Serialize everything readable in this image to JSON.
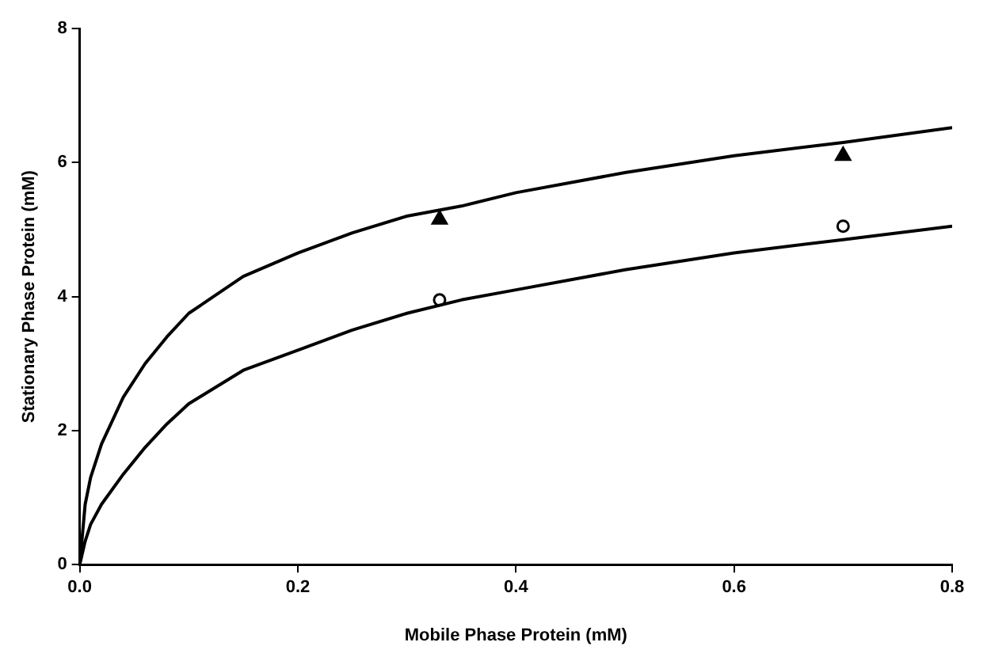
{
  "chart_data": {
    "type": "line",
    "xlabel": "Mobile Phase Protein (mM)",
    "ylabel": "Stationary Phase Protein (mM)",
    "xlim": [
      0,
      0.8
    ],
    "xticks": [
      {
        "value": 0,
        "label": "0.0"
      },
      0.2,
      0.4,
      0.6,
      0.8
    ],
    "ylim": [
      0,
      8
    ],
    "yticks": [
      0,
      2,
      4,
      6,
      8
    ],
    "grid": false,
    "legend": false,
    "series": [
      {
        "color": "#000000",
        "marker": "none",
        "line_style": "solid",
        "x": [
          0,
          0.005,
          0.01,
          0.02,
          0.04,
          0.06,
          0.08,
          0.1,
          0.15,
          0.2,
          0.25,
          0.3,
          0.35,
          0.4,
          0.5,
          0.6,
          0.7,
          0.8
        ],
        "values": [
          0,
          0.9,
          1.3,
          1.8,
          2.5,
          3.0,
          3.4,
          3.75,
          4.3,
          4.65,
          4.95,
          5.2,
          5.35,
          5.55,
          5.85,
          6.1,
          6.3,
          6.52
        ]
      },
      {
        "color": "#000000",
        "marker": "none",
        "line_style": "solid",
        "x": [
          0,
          0.005,
          0.01,
          0.02,
          0.04,
          0.06,
          0.08,
          0.1,
          0.15,
          0.2,
          0.25,
          0.3,
          0.35,
          0.4,
          0.5,
          0.6,
          0.7,
          0.8
        ],
        "values": [
          0,
          0.35,
          0.6,
          0.9,
          1.35,
          1.75,
          2.1,
          2.4,
          2.9,
          3.2,
          3.5,
          3.75,
          3.95,
          4.1,
          4.4,
          4.65,
          4.85,
          5.05
        ]
      },
      {
        "type": "scatter",
        "color": "#000000",
        "marker": "triangle",
        "x": [
          0.33,
          0.7
        ],
        "values": [
          5.15,
          6.1
        ]
      },
      {
        "type": "scatter",
        "color": "#000000",
        "marker": "circle",
        "x": [
          0.33,
          0.7
        ],
        "values": [
          3.95,
          5.05
        ]
      }
    ]
  }
}
